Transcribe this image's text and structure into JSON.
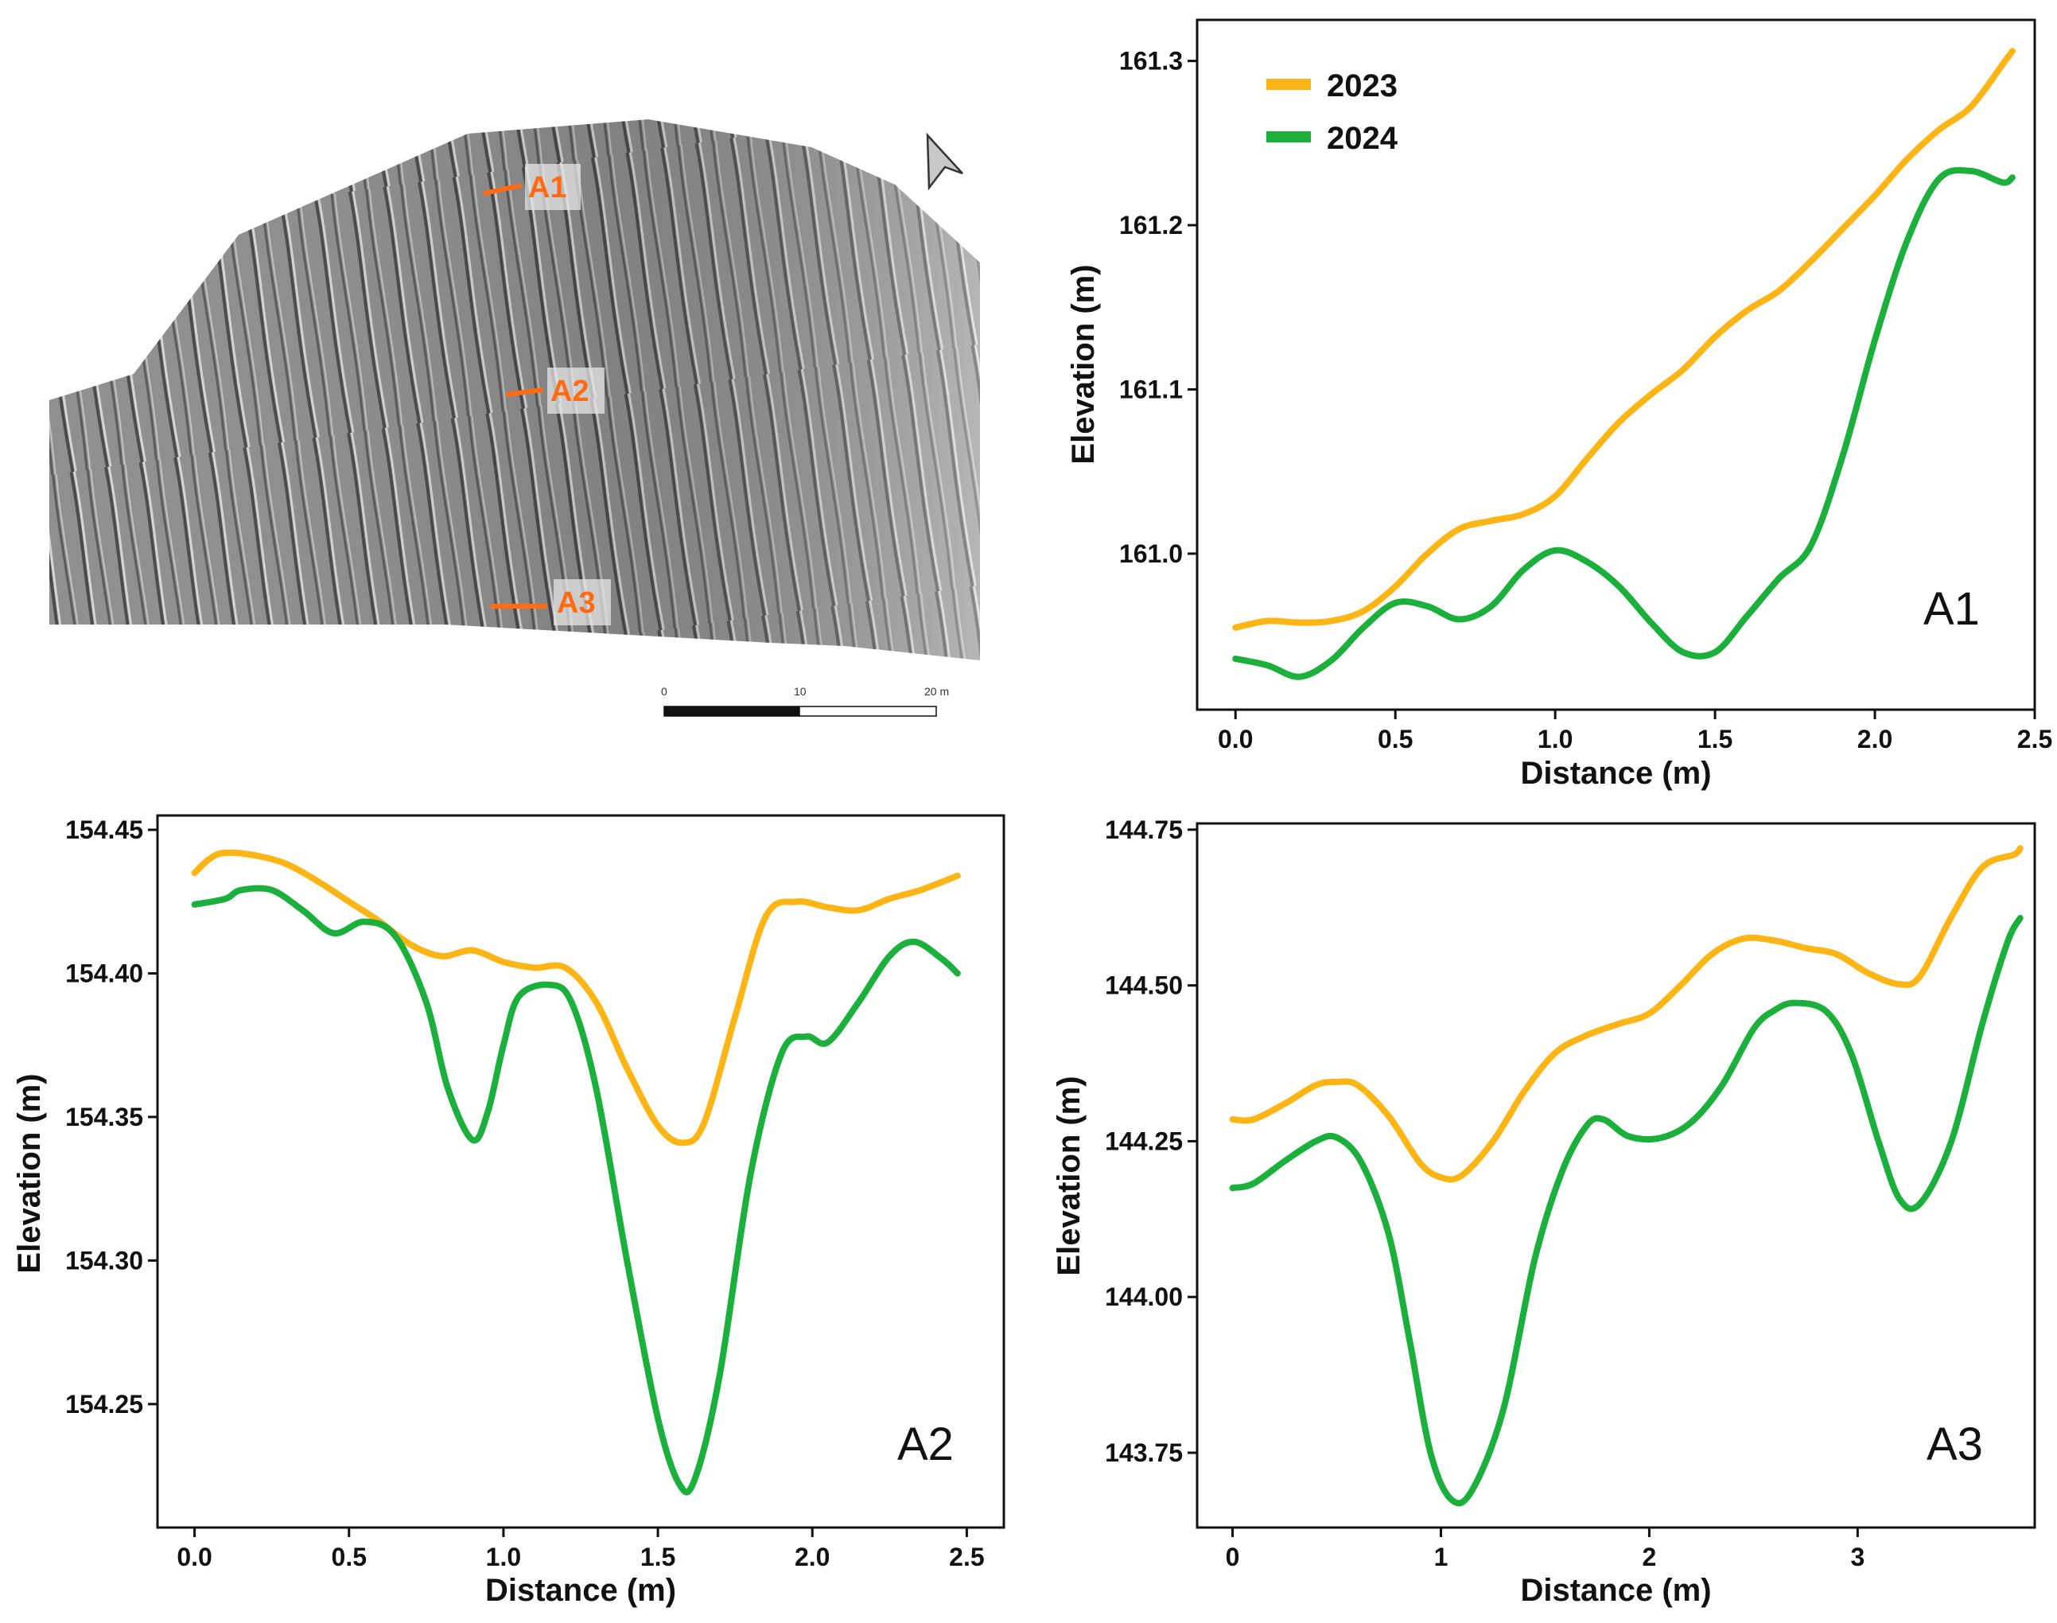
{
  "colors": {
    "y2023": "#fdb515",
    "y2024": "#1bb03b",
    "label_orange": "#ff6a13"
  },
  "legend": {
    "entries": [
      "2023",
      "2024"
    ]
  },
  "map": {
    "profile_labels": [
      "A1",
      "A2",
      "A3"
    ],
    "scale_ticks": [
      "0",
      "10",
      "20 m"
    ],
    "north_arrow": "north-arrow-icon"
  },
  "chart_data": [
    {
      "id": "A1",
      "type": "line",
      "panel_label": "A1",
      "xlabel": "Distance (m)",
      "ylabel": "Elevation (m)",
      "xlim": [
        -0.12,
        2.5
      ],
      "ylim": [
        160.905,
        161.325
      ],
      "xticks": [
        0.0,
        0.5,
        1.0,
        1.5,
        2.0,
        2.5
      ],
      "xtick_labels": [
        "0.0",
        "0.5",
        "1.0",
        "1.5",
        "2.0",
        "2.5"
      ],
      "yticks": [
        161.0,
        161.1,
        161.2,
        161.3
      ],
      "ytick_labels": [
        "161.0",
        "161.1",
        "161.2",
        "161.3"
      ],
      "series": [
        {
          "name": "2023",
          "points": [
            [
              0.0,
              160.955
            ],
            [
              0.1,
              160.959
            ],
            [
              0.2,
              160.958
            ],
            [
              0.3,
              160.959
            ],
            [
              0.4,
              160.965
            ],
            [
              0.5,
              160.98
            ],
            [
              0.6,
              161.0
            ],
            [
              0.7,
              161.015
            ],
            [
              0.8,
              161.02
            ],
            [
              0.9,
              161.024
            ],
            [
              1.0,
              161.035
            ],
            [
              1.1,
              161.058
            ],
            [
              1.2,
              161.08
            ],
            [
              1.3,
              161.097
            ],
            [
              1.4,
              161.112
            ],
            [
              1.5,
              161.132
            ],
            [
              1.6,
              161.148
            ],
            [
              1.7,
              161.16
            ],
            [
              1.8,
              161.178
            ],
            [
              1.9,
              161.198
            ],
            [
              2.0,
              161.218
            ],
            [
              2.1,
              161.24
            ],
            [
              2.2,
              161.258
            ],
            [
              2.3,
              161.272
            ],
            [
              2.4,
              161.298
            ],
            [
              2.43,
              161.306
            ]
          ]
        },
        {
          "name": "2024",
          "points": [
            [
              0.0,
              160.936
            ],
            [
              0.1,
              160.932
            ],
            [
              0.2,
              160.925
            ],
            [
              0.3,
              160.935
            ],
            [
              0.4,
              160.955
            ],
            [
              0.5,
              160.97
            ],
            [
              0.6,
              160.968
            ],
            [
              0.7,
              160.96
            ],
            [
              0.8,
              160.968
            ],
            [
              0.9,
              160.99
            ],
            [
              1.0,
              161.002
            ],
            [
              1.1,
              160.995
            ],
            [
              1.2,
              160.98
            ],
            [
              1.3,
              160.958
            ],
            [
              1.4,
              160.94
            ],
            [
              1.5,
              160.94
            ],
            [
              1.6,
              160.962
            ],
            [
              1.7,
              160.985
            ],
            [
              1.8,
              161.005
            ],
            [
              1.9,
              161.06
            ],
            [
              2.0,
              161.13
            ],
            [
              2.1,
              161.19
            ],
            [
              2.2,
              161.228
            ],
            [
              2.3,
              161.233
            ],
            [
              2.4,
              161.226
            ],
            [
              2.43,
              161.229
            ]
          ]
        }
      ]
    },
    {
      "id": "A2",
      "type": "line",
      "panel_label": "A2",
      "xlabel": "Distance (m)",
      "ylabel": "Elevation (m)",
      "xlim": [
        -0.12,
        2.62
      ],
      "ylim": [
        154.207,
        154.455
      ],
      "xticks": [
        0.0,
        0.5,
        1.0,
        1.5,
        2.0,
        2.5
      ],
      "xtick_labels": [
        "0.0",
        "0.5",
        "1.0",
        "1.5",
        "2.0",
        "2.5"
      ],
      "yticks": [
        154.25,
        154.3,
        154.35,
        154.4,
        154.45
      ],
      "ytick_labels": [
        "154.25",
        "154.30",
        "154.35",
        "154.40",
        "154.45"
      ],
      "series": [
        {
          "name": "2023",
          "points": [
            [
              0.0,
              154.435
            ],
            [
              0.05,
              154.44
            ],
            [
              0.1,
              154.442
            ],
            [
              0.2,
              154.441
            ],
            [
              0.3,
              154.438
            ],
            [
              0.4,
              154.432
            ],
            [
              0.5,
              154.425
            ],
            [
              0.6,
              154.418
            ],
            [
              0.7,
              154.41
            ],
            [
              0.8,
              154.406
            ],
            [
              0.9,
              154.408
            ],
            [
              1.0,
              154.404
            ],
            [
              1.1,
              154.402
            ],
            [
              1.2,
              154.402
            ],
            [
              1.3,
              154.39
            ],
            [
              1.4,
              154.367
            ],
            [
              1.5,
              154.347
            ],
            [
              1.58,
              154.341
            ],
            [
              1.65,
              154.348
            ],
            [
              1.75,
              154.385
            ],
            [
              1.85,
              154.42
            ],
            [
              1.95,
              154.425
            ],
            [
              2.05,
              154.423
            ],
            [
              2.15,
              154.422
            ],
            [
              2.25,
              154.426
            ],
            [
              2.35,
              154.429
            ],
            [
              2.47,
              154.434
            ]
          ]
        },
        {
          "name": "2024",
          "points": [
            [
              0.0,
              154.424
            ],
            [
              0.1,
              154.426
            ],
            [
              0.15,
              154.429
            ],
            [
              0.25,
              154.429
            ],
            [
              0.35,
              154.422
            ],
            [
              0.45,
              154.414
            ],
            [
              0.55,
              154.418
            ],
            [
              0.65,
              154.413
            ],
            [
              0.75,
              154.39
            ],
            [
              0.82,
              154.36
            ],
            [
              0.9,
              154.342
            ],
            [
              0.95,
              154.352
            ],
            [
              1.0,
              154.375
            ],
            [
              1.05,
              154.392
            ],
            [
              1.15,
              154.396
            ],
            [
              1.22,
              154.39
            ],
            [
              1.3,
              154.36
            ],
            [
              1.4,
              154.3
            ],
            [
              1.5,
              154.245
            ],
            [
              1.57,
              154.222
            ],
            [
              1.62,
              154.224
            ],
            [
              1.7,
              154.26
            ],
            [
              1.8,
              154.33
            ],
            [
              1.9,
              154.372
            ],
            [
              1.98,
              154.378
            ],
            [
              2.05,
              154.376
            ],
            [
              2.15,
              154.39
            ],
            [
              2.25,
              154.406
            ],
            [
              2.33,
              154.411
            ],
            [
              2.42,
              154.405
            ],
            [
              2.47,
              154.4
            ]
          ]
        }
      ]
    },
    {
      "id": "A3",
      "type": "line",
      "panel_label": "A3",
      "xlabel": "Distance (m)",
      "ylabel": "Elevation (m)",
      "xlim": [
        -0.17,
        3.85
      ],
      "ylim": [
        143.63,
        144.76
      ],
      "xticks": [
        0,
        1,
        2,
        3
      ],
      "xtick_labels": [
        "0",
        "1",
        "2",
        "3"
      ],
      "yticks": [
        143.75,
        144.0,
        144.25,
        144.5,
        144.75
      ],
      "ytick_labels": [
        "143.75",
        "144.00",
        "144.25",
        "144.50",
        "144.75"
      ],
      "series": [
        {
          "name": "2023",
          "points": [
            [
              0.0,
              144.285
            ],
            [
              0.1,
              144.285
            ],
            [
              0.25,
              144.31
            ],
            [
              0.4,
              144.34
            ],
            [
              0.5,
              144.345
            ],
            [
              0.6,
              144.34
            ],
            [
              0.75,
              144.29
            ],
            [
              0.9,
              144.215
            ],
            [
              1.0,
              144.192
            ],
            [
              1.1,
              144.195
            ],
            [
              1.25,
              144.25
            ],
            [
              1.4,
              144.33
            ],
            [
              1.55,
              144.392
            ],
            [
              1.7,
              144.42
            ],
            [
              1.85,
              144.438
            ],
            [
              2.0,
              144.455
            ],
            [
              2.15,
              144.5
            ],
            [
              2.3,
              144.55
            ],
            [
              2.45,
              144.575
            ],
            [
              2.6,
              144.572
            ],
            [
              2.75,
              144.56
            ],
            [
              2.9,
              144.55
            ],
            [
              3.05,
              144.52
            ],
            [
              3.2,
              144.502
            ],
            [
              3.3,
              144.515
            ],
            [
              3.45,
              144.61
            ],
            [
              3.6,
              144.69
            ],
            [
              3.75,
              144.71
            ],
            [
              3.78,
              144.72
            ]
          ]
        },
        {
          "name": "2024",
          "points": [
            [
              0.0,
              144.175
            ],
            [
              0.1,
              144.182
            ],
            [
              0.25,
              144.218
            ],
            [
              0.4,
              144.25
            ],
            [
              0.5,
              144.256
            ],
            [
              0.62,
              144.215
            ],
            [
              0.75,
              144.1
            ],
            [
              0.85,
              143.93
            ],
            [
              0.95,
              143.75
            ],
            [
              1.05,
              143.675
            ],
            [
              1.15,
              143.69
            ],
            [
              1.3,
              143.82
            ],
            [
              1.45,
              144.06
            ],
            [
              1.58,
              144.2
            ],
            [
              1.7,
              144.275
            ],
            [
              1.78,
              144.285
            ],
            [
              1.9,
              144.258
            ],
            [
              2.05,
              144.255
            ],
            [
              2.2,
              144.28
            ],
            [
              2.35,
              144.34
            ],
            [
              2.5,
              144.43
            ],
            [
              2.6,
              144.46
            ],
            [
              2.7,
              144.472
            ],
            [
              2.85,
              144.458
            ],
            [
              2.97,
              144.39
            ],
            [
              3.1,
              144.25
            ],
            [
              3.2,
              144.158
            ],
            [
              3.3,
              144.15
            ],
            [
              3.45,
              144.25
            ],
            [
              3.6,
              144.44
            ],
            [
              3.72,
              144.57
            ],
            [
              3.78,
              144.608
            ]
          ]
        }
      ]
    }
  ]
}
